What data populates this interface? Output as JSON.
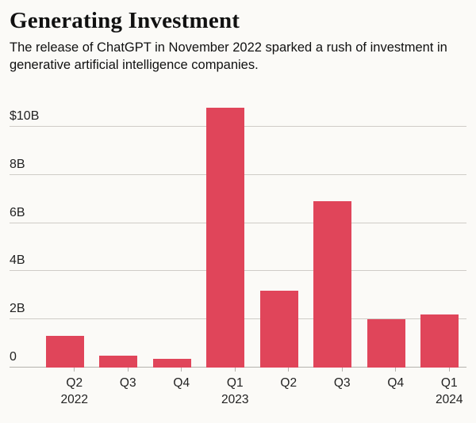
{
  "header": {
    "title": "Generating Investment",
    "subtitle": "The release of ChatGPT in November 2022 sparked a rush of investment in generative artificial intelligence companies."
  },
  "chart_data": {
    "type": "bar",
    "title": "Generating Investment",
    "unit": "billions of U.S. dollars",
    "categories": [
      {
        "quarter": "Q2",
        "year": "2022"
      },
      {
        "quarter": "Q3",
        "year": ""
      },
      {
        "quarter": "Q4",
        "year": ""
      },
      {
        "quarter": "Q1",
        "year": "2023"
      },
      {
        "quarter": "Q2",
        "year": ""
      },
      {
        "quarter": "Q3",
        "year": ""
      },
      {
        "quarter": "Q4",
        "year": ""
      },
      {
        "quarter": "Q1",
        "year": "2024"
      }
    ],
    "values": [
      1.3,
      0.5,
      0.35,
      10.8,
      3.2,
      6.9,
      2.0,
      2.2
    ],
    "y_ticks": [
      {
        "value": 0,
        "label": "0"
      },
      {
        "value": 2,
        "label": "2B"
      },
      {
        "value": 4,
        "label": "4B"
      },
      {
        "value": 6,
        "label": "6B"
      },
      {
        "value": 8,
        "label": "8B"
      },
      {
        "value": 10,
        "label": "$10B"
      }
    ],
    "ylim": [
      0,
      11.2
    ],
    "grid": "horizontal",
    "legend": "none",
    "colors": {
      "bar": "#e0455a",
      "gridline": "#cfccc7",
      "text": "#111111"
    }
  }
}
